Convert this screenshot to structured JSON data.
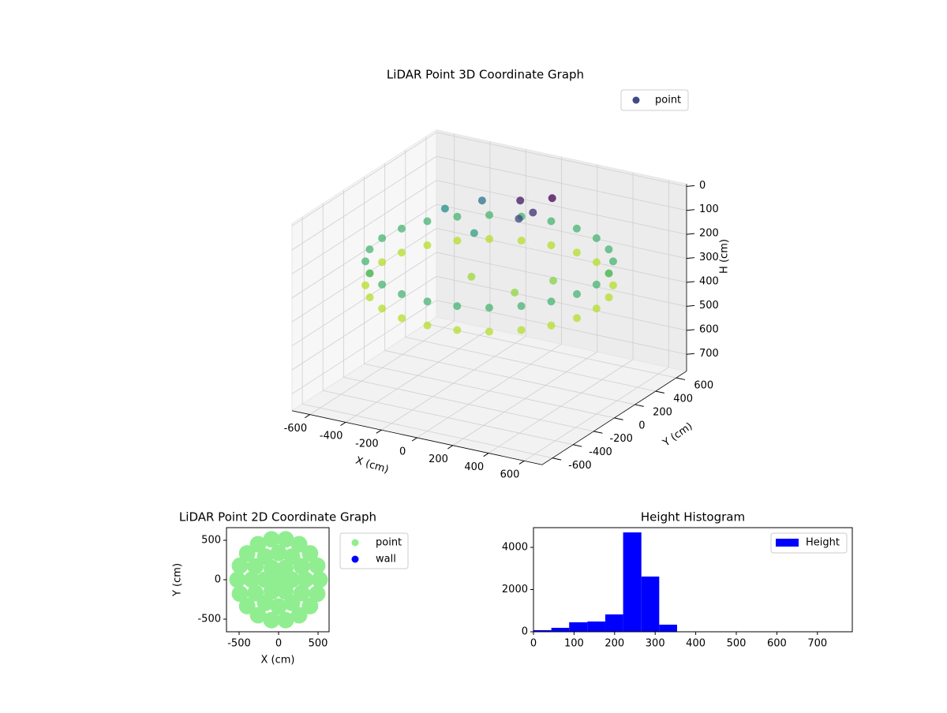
{
  "chart_data": [
    {
      "type": "scatter3d",
      "title": "LiDAR Point 3D Coordinate Graph",
      "xlabel": "X (cm)",
      "ylabel": "Y (cm)",
      "zlabel": "H (cm)",
      "xlim": [
        -700,
        700
      ],
      "ylim": [
        -700,
        700
      ],
      "zlim": [
        770,
        -10
      ],
      "xticks": [
        -600,
        -400,
        -200,
        0,
        200,
        400,
        600
      ],
      "yticks": [
        -600,
        -400,
        -200,
        0,
        200,
        400,
        600
      ],
      "zticks": [
        0,
        100,
        200,
        300,
        400,
        500,
        600,
        700
      ],
      "colormap": [
        "#440154",
        "#3b528b",
        "#21918c",
        "#5ec962",
        "#b5de2b"
      ],
      "legend": "upper right",
      "series": [
        {
          "name": "point",
          "color": "#3f4a8a",
          "x": [
            600,
            580,
            520,
            424,
            300,
            155,
            0,
            -155,
            -300,
            -424,
            -520,
            -580,
            -600,
            -580,
            -520,
            -424,
            -300,
            -155,
            0,
            155,
            300,
            424,
            520,
            580,
            600,
            580,
            520,
            424,
            300,
            155,
            0,
            -155,
            -300,
            -424,
            -520,
            -580,
            -600,
            -580,
            -520,
            -424,
            -300,
            -155,
            0,
            155,
            300,
            424,
            520,
            580,
            0,
            100,
            150,
            50,
            -300,
            -450,
            -200,
            200,
            -100,
            300
          ],
          "y": [
            0,
            155,
            300,
            424,
            520,
            580,
            600,
            580,
            520,
            424,
            300,
            155,
            0,
            -155,
            -300,
            -424,
            -520,
            -580,
            -600,
            -580,
            -520,
            -424,
            -300,
            -155,
            0,
            155,
            300,
            424,
            520,
            580,
            600,
            580,
            520,
            424,
            300,
            155,
            0,
            -155,
            -300,
            -424,
            -520,
            -580,
            -600,
            -580,
            -520,
            -424,
            -300,
            -155,
            300,
            250,
            350,
            200,
            450,
            350,
            200,
            -100,
            0,
            100
          ],
          "z": [
            230,
            230,
            230,
            230,
            230,
            230,
            230,
            230,
            230,
            230,
            230,
            230,
            230,
            230,
            230,
            230,
            230,
            230,
            230,
            230,
            230,
            230,
            230,
            230,
            330,
            330,
            330,
            330,
            330,
            330,
            330,
            330,
            330,
            330,
            330,
            330,
            330,
            330,
            330,
            330,
            330,
            330,
            330,
            330,
            330,
            330,
            330,
            330,
            60,
            80,
            40,
            100,
            150,
            180,
            200,
            300,
            310,
            290
          ]
        }
      ]
    },
    {
      "type": "scatter",
      "title": "LiDAR Point 2D Coordinate Graph",
      "xlabel": "X (cm)",
      "ylabel": "Y (cm)",
      "xlim": [
        -660,
        640
      ],
      "ylim": [
        -660,
        660
      ],
      "xticks": [
        -500,
        0,
        500
      ],
      "yticks": [
        -500,
        0,
        500
      ],
      "legend": "outside upper right",
      "series": [
        {
          "name": "point",
          "color": "#90ee90",
          "x": [
            0,
            170,
            85,
            -85,
            -170,
            -85,
            85,
            340,
            294,
            170,
            0,
            -170,
            -294,
            -340,
            -294,
            -170,
            0,
            170,
            294,
            520,
            489,
            398,
            260,
            90,
            -90,
            -260,
            -398,
            -489,
            -520,
            -489,
            -398,
            -260,
            -90,
            90,
            260,
            398,
            489
          ],
          "y": [
            0,
            0,
            147,
            147,
            0,
            -147,
            -147,
            0,
            170,
            294,
            340,
            294,
            170,
            0,
            -170,
            -294,
            -340,
            -294,
            -170,
            0,
            178,
            334,
            450,
            512,
            512,
            450,
            334,
            178,
            0,
            -178,
            -334,
            -450,
            -512,
            -512,
            -450,
            -334,
            -178
          ]
        },
        {
          "name": "wall",
          "color": "#0000ff",
          "x": [],
          "y": []
        }
      ]
    },
    {
      "type": "histogram",
      "title": "Height Histogram",
      "bins": [
        0,
        44,
        88,
        133,
        177,
        221,
        266,
        310,
        354,
        398,
        442,
        487,
        531,
        575,
        619,
        664,
        708,
        752,
        796
      ],
      "values": [
        75,
        187,
        449,
        486,
        822,
        4710,
        2617,
        336,
        0,
        0,
        0,
        0,
        0,
        0,
        0,
        0,
        0,
        0
      ],
      "name": "Height",
      "color": "#0000ff",
      "xlim": [
        0,
        786
      ],
      "ylim": [
        0,
        4935
      ],
      "xticks": [
        0,
        100,
        200,
        300,
        400,
        500,
        600,
        700
      ],
      "yticks": [
        0,
        2000,
        4000
      ],
      "legend": "upper right"
    }
  ]
}
